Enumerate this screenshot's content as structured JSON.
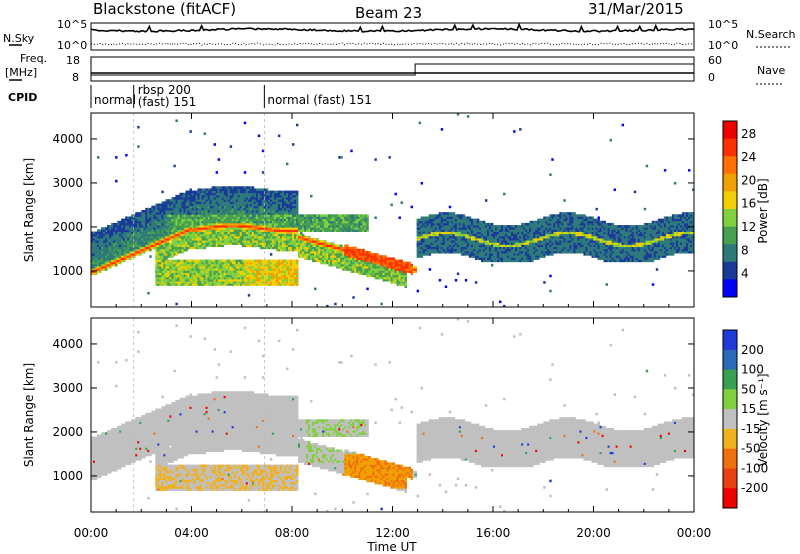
{
  "header": {
    "station": "Blackstone (fitACF)",
    "beam": "Beam 23",
    "date": "31/Mar/2015"
  },
  "nsky_panel": {
    "left_label": "N.Sky",
    "right_label": "N.Search",
    "left_ticks": [
      "10^5",
      "10^0"
    ],
    "right_ticks": [
      "10^5",
      "10^0"
    ]
  },
  "freq_panel": {
    "left_label_1": "Freq.",
    "left_label_2": "[MHz]",
    "left_ticks": [
      "18",
      "8"
    ],
    "right_label": "Nave",
    "right_ticks": [
      "60",
      "0"
    ]
  },
  "cpid_panel": {
    "label": "CPID",
    "segments": [
      {
        "name": "normal",
        "start_hour": 0.0
      },
      {
        "name": "rbsp 200",
        "name2": "(fast) 151",
        "start_hour": 1.7
      },
      {
        "name": "normal (fast) 151",
        "start_hour": 6.9
      }
    ]
  },
  "power_panel": {
    "ylabel": "Slant Range [km]",
    "yticks": [
      "1000",
      "2000",
      "3000",
      "4000"
    ],
    "colorbar_label": "Power [dB]",
    "colorbar_ticks": [
      "4",
      "8",
      "12",
      "16",
      "20",
      "24",
      "28"
    ],
    "colorbar_colors": [
      "#0000ff",
      "#1a3a9a",
      "#2e7a7a",
      "#46a050",
      "#80d040",
      "#f0d000",
      "#f0a000",
      "#ff7000",
      "#ff3000",
      "#ee0000"
    ]
  },
  "velocity_panel": {
    "ylabel": "Slant Range [km]",
    "yticks": [
      "1000",
      "2000",
      "3000",
      "4000"
    ],
    "colorbar_label": "Velocity [m s⁻¹]",
    "colorbar_ticks": [
      "200",
      "100",
      "50",
      "15",
      "-15",
      "-50",
      "-100",
      "-200"
    ],
    "colorbar_colors": [
      "#1e3ad8",
      "#2a6ab8",
      "#38a050",
      "#80d040",
      "#c0c0c0",
      "#f0b020",
      "#f07010",
      "#e84010",
      "#ee0000"
    ]
  },
  "xaxis": {
    "label": "Time UT",
    "ticks": [
      "00:00",
      "04:00",
      "08:00",
      "12:00",
      "16:00",
      "20:00",
      "00:00"
    ]
  },
  "chart_data": {
    "type": "heatmap",
    "time_range_hours": [
      0,
      24
    ],
    "slant_range_km": [
      180,
      4590
    ],
    "nave_step_hour": 12.9,
    "nave_values": [
      0,
      55
    ],
    "power_bands": [
      {
        "from_hour": 0.0,
        "to_hour": 4.0,
        "range_start_km": 800,
        "range_end_km": 2000,
        "peak_power_db": 28
      },
      {
        "from_hour": 4.0,
        "to_hour": 8.2,
        "range_start_km": 2000,
        "range_end_km": 2200,
        "peak_power_db": 16
      },
      {
        "from_hour": 8.2,
        "to_hour": 12.8,
        "range_start_km": 1700,
        "range_end_km": 950,
        "peak_power_db": 28
      },
      {
        "from_hour": 12.9,
        "to_hour": 24.0,
        "range_start_km": 1700,
        "range_end_km": 1700,
        "peak_power_db": 16
      }
    ],
    "velocity_features": [
      {
        "from_hour": 10.0,
        "to_hour": 12.5,
        "range_start_km": 800,
        "range_end_km": 1400,
        "velocity_ms": -50
      },
      {
        "from_hour": 12.9,
        "to_hour": 24.0,
        "range_start_km": 1000,
        "range_end_km": 2400,
        "velocity_ms": 0
      }
    ]
  }
}
